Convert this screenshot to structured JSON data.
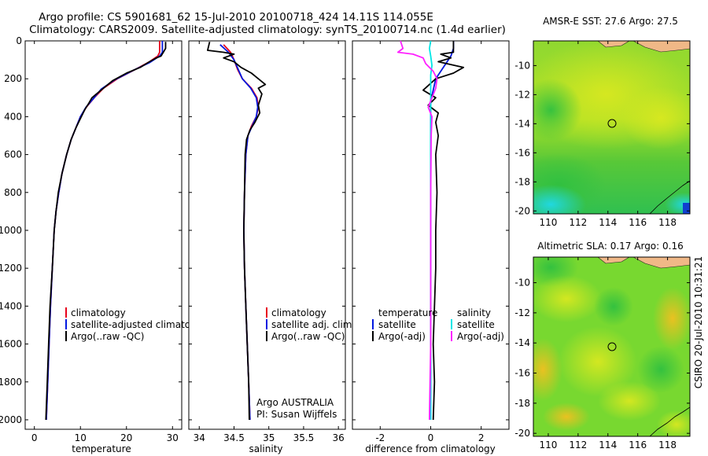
{
  "header": {
    "line1": "Argo profile: CS 5901681_62 15-Jul-2010 20100718_424 14.11S 114.055E",
    "line2": "Climatology: CARS2009. Satellite-adjusted climatology: synTS_20100714.nc (1.4d earlier)"
  },
  "side_stamp": "CSIRO 20-Jul-2010 10:31:21",
  "colors": {
    "clim": "#e8001c",
    "sat": "#0018e0",
    "argo": "#000000",
    "sat_sal": "#00e6e6",
    "argo_sal": "#ff20ff",
    "land": "#f0b887"
  },
  "chart_data": [
    {
      "type": "line",
      "id": "temperature",
      "xlabel": "temperature",
      "xlim": [
        -2,
        32
      ],
      "ylim": [
        0,
        2050
      ],
      "xticks": [
        "0",
        "10",
        "20",
        "30"
      ],
      "yticks": [
        "0",
        "200",
        "400",
        "600",
        "800",
        "1000",
        "1200",
        "1400",
        "1600",
        "1800",
        "2000"
      ],
      "legend": [
        "climatology",
        "satellite-adjusted climatology",
        "Argo(..raw -QC)"
      ],
      "series": [
        {
          "name": "climatology",
          "color": "clim",
          "points": [
            [
              27.2,
              0
            ],
            [
              27.2,
              60
            ],
            [
              26.8,
              80
            ],
            [
              25,
              110
            ],
            [
              22,
              150
            ],
            [
              18,
              200
            ],
            [
              15,
              250
            ],
            [
              13,
              300
            ],
            [
              11.3,
              350
            ],
            [
              10,
              400
            ],
            [
              9,
              460
            ],
            [
              8,
              520
            ],
            [
              7,
              600
            ],
            [
              6,
              700
            ],
            [
              5.3,
              800
            ],
            [
              4.7,
              900
            ],
            [
              4.3,
              1000
            ],
            [
              3.9,
              1200
            ],
            [
              3.5,
              1400
            ],
            [
              3.2,
              1600
            ],
            [
              2.9,
              1800
            ],
            [
              2.6,
              2000
            ]
          ]
        },
        {
          "name": "satellite-adjusted climatology",
          "color": "sat",
          "points": [
            [
              27.8,
              0
            ],
            [
              27.8,
              60
            ],
            [
              27.2,
              80
            ],
            [
              25,
              115
            ],
            [
              21.5,
              155
            ],
            [
              17.5,
              205
            ],
            [
              14.5,
              255
            ],
            [
              12.8,
              305
            ],
            [
              11.2,
              350
            ],
            [
              10,
              400
            ],
            [
              9,
              460
            ],
            [
              8,
              520
            ],
            [
              7,
              600
            ],
            [
              6,
              700
            ],
            [
              5.3,
              800
            ],
            [
              4.7,
              900
            ],
            [
              4.3,
              1000
            ],
            [
              3.9,
              1200
            ],
            [
              3.5,
              1400
            ],
            [
              3.2,
              1600
            ],
            [
              2.9,
              1800
            ],
            [
              2.6,
              2000
            ]
          ]
        },
        {
          "name": "Argo(..raw -QC)",
          "color": "argo",
          "points": [
            [
              28.5,
              5
            ],
            [
              28.5,
              40
            ],
            [
              28,
              60
            ],
            [
              27.5,
              80
            ],
            [
              26.5,
              90
            ],
            [
              25,
              110
            ],
            [
              23,
              140
            ],
            [
              20,
              170
            ],
            [
              17,
              210
            ],
            [
              15,
              250
            ],
            [
              13.5,
              280
            ],
            [
              12.5,
              300
            ],
            [
              11.8,
              330
            ],
            [
              11,
              360
            ],
            [
              10.2,
              400
            ],
            [
              9,
              460
            ],
            [
              8,
              520
            ],
            [
              7,
              600
            ],
            [
              6,
              700
            ],
            [
              5.2,
              800
            ],
            [
              4.7,
              900
            ],
            [
              4.3,
              1000
            ],
            [
              3.9,
              1200
            ],
            [
              3.4,
              1400
            ],
            [
              3.1,
              1600
            ],
            [
              2.8,
              1800
            ],
            [
              2.5,
              2000
            ]
          ]
        }
      ]
    },
    {
      "type": "line",
      "id": "salinity",
      "xlabel": "salinity",
      "xlim": [
        33.85,
        36.1
      ],
      "ylim": [
        0,
        2050
      ],
      "xticks": [
        "34",
        "34.5",
        "35",
        "35.5",
        "36"
      ],
      "legend": [
        "climatology",
        "satellite adj. clim.",
        "Argo(..raw -QC)"
      ],
      "note": [
        "Argo AUSTRALIA",
        "PI: Susan Wijffels"
      ],
      "series": [
        {
          "name": "climatology",
          "color": "clim",
          "points": [
            [
              34.35,
              20
            ],
            [
              34.45,
              60
            ],
            [
              34.5,
              100
            ],
            [
              34.55,
              150
            ],
            [
              34.62,
              200
            ],
            [
              34.75,
              250
            ],
            [
              34.83,
              300
            ],
            [
              34.85,
              350
            ],
            [
              34.82,
              400
            ],
            [
              34.75,
              450
            ],
            [
              34.7,
              500
            ],
            [
              34.67,
              600
            ],
            [
              34.65,
              800
            ],
            [
              34.64,
              1000
            ],
            [
              34.65,
              1200
            ],
            [
              34.67,
              1400
            ],
            [
              34.69,
              1600
            ],
            [
              34.71,
              1800
            ],
            [
              34.73,
              2000
            ]
          ]
        },
        {
          "name": "satellite adj. clim.",
          "color": "sat",
          "points": [
            [
              34.3,
              20
            ],
            [
              34.42,
              60
            ],
            [
              34.5,
              100
            ],
            [
              34.56,
              150
            ],
            [
              34.62,
              200
            ],
            [
              34.74,
              250
            ],
            [
              34.82,
              300
            ],
            [
              34.84,
              350
            ],
            [
              34.82,
              400
            ],
            [
              34.76,
              450
            ],
            [
              34.7,
              500
            ],
            [
              34.67,
              600
            ],
            [
              34.65,
              800
            ],
            [
              34.64,
              1000
            ],
            [
              34.65,
              1200
            ],
            [
              34.67,
              1400
            ],
            [
              34.69,
              1600
            ],
            [
              34.71,
              1800
            ],
            [
              34.73,
              2000
            ]
          ]
        },
        {
          "name": "Argo(..raw -QC)",
          "color": "argo",
          "points": [
            [
              34.15,
              5
            ],
            [
              34.12,
              50
            ],
            [
              34.35,
              60
            ],
            [
              34.5,
              70
            ],
            [
              34.35,
              90
            ],
            [
              34.5,
              110
            ],
            [
              34.6,
              140
            ],
            [
              34.75,
              170
            ],
            [
              34.85,
              200
            ],
            [
              34.95,
              230
            ],
            [
              34.85,
              250
            ],
            [
              34.9,
              280
            ],
            [
              34.85,
              340
            ],
            [
              34.87,
              380
            ],
            [
              34.8,
              430
            ],
            [
              34.73,
              470
            ],
            [
              34.68,
              520
            ],
            [
              34.66,
              600
            ],
            [
              34.65,
              800
            ],
            [
              34.64,
              1000
            ],
            [
              34.65,
              1200
            ],
            [
              34.67,
              1400
            ],
            [
              34.69,
              1600
            ],
            [
              34.71,
              1800
            ],
            [
              34.72,
              2000
            ]
          ]
        }
      ]
    },
    {
      "type": "line",
      "id": "difference",
      "xlabel": "difference from climatology",
      "xlim": [
        -3.1,
        3.1
      ],
      "ylim": [
        0,
        2050
      ],
      "xticks": [
        "-2",
        "0",
        "2"
      ],
      "legend_left": {
        "title": "temperature",
        "items": [
          "satellite",
          "Argo(-adj)"
        ]
      },
      "legend_right": {
        "title": "salinity",
        "items": [
          "satellite",
          "Argo(-adj)"
        ]
      },
      "series": [
        {
          "name": "temp satellite",
          "color": "sat",
          "points": [
            [
              0.9,
              0
            ],
            [
              0.9,
              40
            ],
            [
              0.8,
              80
            ],
            [
              0.6,
              120
            ],
            [
              0.4,
              160
            ],
            [
              0.2,
              200
            ],
            [
              0.1,
              260
            ],
            [
              0,
              320
            ],
            [
              0,
              400
            ],
            [
              0,
              600
            ],
            [
              0,
              1000
            ],
            [
              0,
              1500
            ],
            [
              0,
              2000
            ]
          ]
        },
        {
          "name": "temp Argo(-adj)",
          "color": "argo",
          "points": [
            [
              0.9,
              0
            ],
            [
              0.9,
              60
            ],
            [
              0.4,
              70
            ],
            [
              0.8,
              90
            ],
            [
              0.3,
              110
            ],
            [
              1.3,
              140
            ],
            [
              0.9,
              170
            ],
            [
              0.2,
              200
            ],
            [
              -0.3,
              260
            ],
            [
              0.2,
              300
            ],
            [
              -0.1,
              340
            ],
            [
              0.3,
              380
            ],
            [
              0.2,
              430
            ],
            [
              0.3,
              500
            ],
            [
              0.2,
              600
            ],
            [
              0.25,
              800
            ],
            [
              0.2,
              1000
            ],
            [
              0.2,
              1200
            ],
            [
              0.15,
              1400
            ],
            [
              0.1,
              1600
            ],
            [
              0.15,
              1800
            ],
            [
              0.1,
              2000
            ]
          ]
        },
        {
          "name": "sal satellite",
          "color": "sat_sal",
          "points": [
            [
              0,
              0
            ],
            [
              -0.05,
              40
            ],
            [
              0,
              80
            ],
            [
              0.05,
              130
            ],
            [
              0,
              180
            ],
            [
              0,
              250
            ],
            [
              0,
              400
            ],
            [
              0,
              700
            ],
            [
              0,
              1000
            ],
            [
              0,
              1500
            ],
            [
              0,
              2000
            ]
          ]
        },
        {
          "name": "sal Argo(-adj)",
          "color": "argo_sal",
          "points": [
            [
              -1.2,
              0
            ],
            [
              -1.1,
              40
            ],
            [
              -1.3,
              60
            ],
            [
              -0.7,
              70
            ],
            [
              -0.3,
              90
            ],
            [
              -0.2,
              120
            ],
            [
              0.1,
              160
            ],
            [
              0.25,
              200
            ],
            [
              0.2,
              250
            ],
            [
              0.05,
              300
            ],
            [
              -0.1,
              350
            ],
            [
              0.05,
              400
            ],
            [
              0.02,
              500
            ],
            [
              0,
              800
            ],
            [
              0,
              1200
            ],
            [
              0,
              1600
            ],
            [
              -0.05,
              2000
            ]
          ]
        }
      ]
    },
    {
      "type": "heatmap",
      "id": "sst-map",
      "title": "AMSR-E SST: 27.6 Argo: 27.5",
      "xticks": [
        "110",
        "112",
        "114",
        "116",
        "118"
      ],
      "yticks": [
        "-10",
        "-12",
        "-14",
        "-16",
        "-18",
        "-20"
      ],
      "xlim": [
        109,
        119.5
      ],
      "ylim": [
        -20.2,
        -8.3
      ],
      "marker": [
        114.055,
        -14.11
      ]
    },
    {
      "type": "heatmap",
      "id": "sla-map",
      "title": "Altimetric SLA: 0.17 Argo: 0.16",
      "xticks": [
        "110",
        "112",
        "114",
        "116",
        "118"
      ],
      "yticks": [
        "-10",
        "-12",
        "-14",
        "-16",
        "-18",
        "-20"
      ],
      "xlim": [
        109,
        119.5
      ],
      "ylim": [
        -20.2,
        -8.3
      ],
      "marker": [
        114.055,
        -14.11
      ]
    }
  ]
}
